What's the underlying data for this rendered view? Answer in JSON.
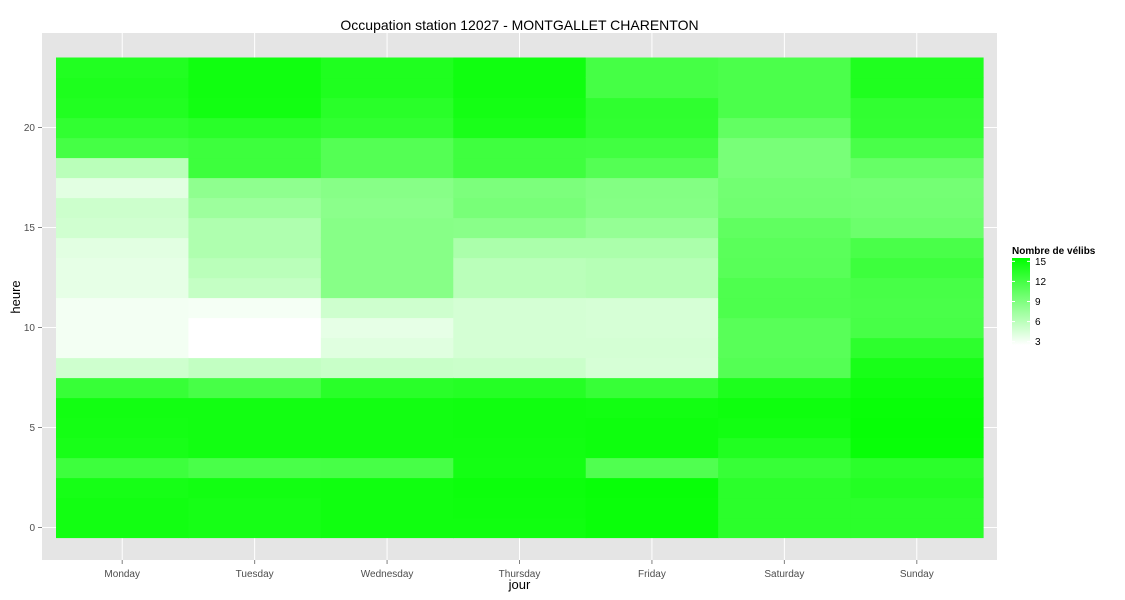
{
  "chart_data": {
    "type": "heatmap",
    "title": "Occupation station 12027 - MONTGALLET CHARENTON",
    "xlabel": "jour",
    "ylabel": "heure",
    "x_categories": [
      "Monday",
      "Tuesday",
      "Wednesday",
      "Thursday",
      "Friday",
      "Saturday",
      "Sunday"
    ],
    "y_range": [
      0,
      23
    ],
    "y_ticks": [
      0,
      5,
      10,
      15,
      20
    ],
    "grid": true,
    "legend": {
      "title": "Nombre de vélibs",
      "position": "right",
      "breaks": [
        15,
        12,
        9,
        6,
        3
      ],
      "low": 2.5,
      "high": 15.5,
      "low_color": "#ffffff",
      "high_color": "#00ff00"
    },
    "colors": {
      "panel_background": "#e5e5e5",
      "grid_line": "#ffffff"
    },
    "series": [
      {
        "name": "Monday",
        "values": [
          14.6,
          14.6,
          14.4,
          12.4,
          14.3,
          14.5,
          14.6,
          12.7,
          5.0,
          3.1,
          3.1,
          3.1,
          3.8,
          3.8,
          4.0,
          4.9,
          5.1,
          4.0,
          6.0,
          12.0,
          13.0,
          13.8,
          14.0,
          13.8
        ]
      },
      {
        "name": "Tuesday",
        "values": [
          14.4,
          14.4,
          14.6,
          11.8,
          14.6,
          14.6,
          14.6,
          11.9,
          5.6,
          2.5,
          2.5,
          3.0,
          5.5,
          6.0,
          6.6,
          6.6,
          7.5,
          8.2,
          12.4,
          12.4,
          13.4,
          14.6,
          14.7,
          14.7
        ]
      },
      {
        "name": "Wednesday",
        "values": [
          14.7,
          14.7,
          14.7,
          11.9,
          14.6,
          14.6,
          14.6,
          13.4,
          5.3,
          4.1,
          3.8,
          5.0,
          8.6,
          8.6,
          8.6,
          8.6,
          8.4,
          8.6,
          11.2,
          11.2,
          13.0,
          13.4,
          13.9,
          13.9
        ]
      },
      {
        "name": "Thursday",
        "values": [
          14.7,
          14.8,
          14.9,
          14.5,
          14.6,
          14.7,
          14.7,
          13.6,
          5.2,
          4.7,
          4.7,
          4.7,
          6.0,
          6.0,
          6.8,
          8.5,
          9.4,
          9.2,
          12.3,
          12.3,
          14.2,
          14.5,
          14.7,
          14.7
        ]
      },
      {
        "name": "Friday",
        "values": [
          15.0,
          15.0,
          15.1,
          11.4,
          14.8,
          14.8,
          14.6,
          12.7,
          4.6,
          4.7,
          4.6,
          4.6,
          6.2,
          6.2,
          6.8,
          7.9,
          8.7,
          8.8,
          11.2,
          12.2,
          13.0,
          13.1,
          12.0,
          12.0
        ]
      },
      {
        "name": "Saturday",
        "values": [
          13.3,
          13.3,
          13.3,
          12.7,
          13.8,
          14.6,
          14.8,
          14.0,
          11.2,
          11.0,
          11.0,
          11.6,
          11.5,
          11.0,
          10.9,
          10.6,
          9.8,
          9.7,
          9.4,
          9.4,
          10.5,
          11.7,
          11.7,
          11.7
        ]
      },
      {
        "name": "Sunday",
        "values": [
          13.3,
          13.3,
          13.7,
          13.3,
          15.1,
          15.2,
          15.1,
          14.8,
          14.3,
          13.2,
          11.9,
          11.8,
          11.9,
          12.4,
          11.8,
          10.0,
          9.7,
          9.6,
          10.3,
          11.8,
          12.9,
          13.0,
          13.9,
          13.9
        ]
      }
    ]
  }
}
